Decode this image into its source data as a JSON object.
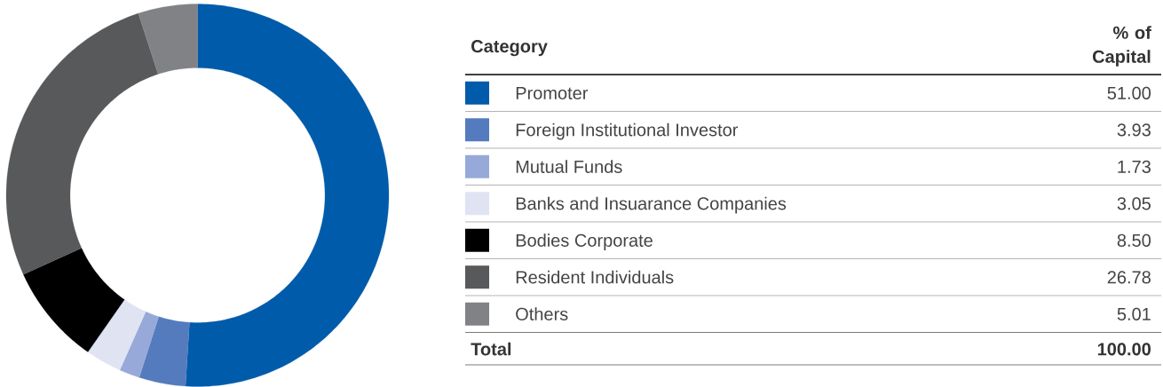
{
  "chart_data": {
    "type": "donut",
    "legend_title": "Category",
    "categories": [
      "Promoter",
      "Foreign Institutional Investor",
      "Mutual Funds",
      "Banks and Insuarance Companies",
      "Bodies Corporate",
      "Resident Individuals",
      "Others"
    ],
    "values": [
      51.0,
      3.93,
      1.73,
      3.05,
      8.5,
      26.78,
      5.01
    ],
    "value_labels": [
      "51.00",
      "3.93",
      "1.73",
      "3.05",
      "8.50",
      "26.78",
      "5.01"
    ],
    "colors": [
      "#005baa",
      "#557bbf",
      "#97a9d8",
      "#e0e3f2",
      "#000000",
      "#58595b",
      "#808285"
    ],
    "legend": "right",
    "annotations": [
      "% of Capital",
      "Total",
      "100.00"
    ]
  }
}
